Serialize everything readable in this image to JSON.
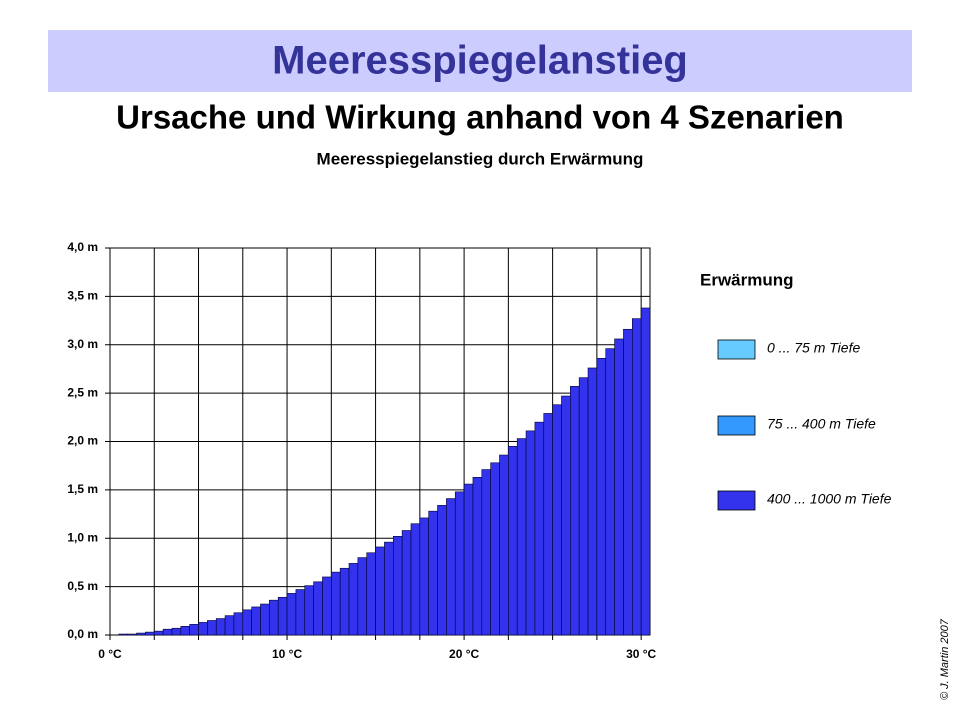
{
  "header": {
    "title": "Meeresspiegelanstieg",
    "subtitle": "Ursache und Wirkung anhand von 4 Szenarien"
  },
  "footer": {
    "copyright": "© J. Martin 2007"
  },
  "chart_data": {
    "type": "histogram",
    "stacked": true,
    "title": "Meeresspiegelanstieg durch Erwärmung",
    "legend_title": "Erwärmung",
    "legend": "right",
    "grid": true,
    "bins": [
      0,
      0.5,
      1,
      1.5,
      2,
      2.5,
      3,
      3.5,
      4,
      4.5,
      5,
      5.5,
      6,
      6.5,
      7,
      7.5,
      8,
      8.5,
      9,
      9.5,
      10,
      10.5,
      11,
      11.5,
      12,
      12.5,
      13,
      13.5,
      14,
      14.5,
      15,
      15.5,
      16,
      16.5,
      17,
      17.5,
      18,
      18.5,
      19,
      19.5,
      20,
      20.5,
      21,
      21.5,
      22,
      22.5,
      23,
      23.5,
      24,
      24.5,
      25,
      25.5,
      26,
      26.5,
      27,
      27.5,
      28,
      28.5,
      29,
      29.5,
      30,
      30.5
    ],
    "series": [
      {
        "name": "0 ... 75 m Tiefe",
        "color": "#66ccff",
        "values": [
          0,
          0,
          0,
          0,
          0,
          0,
          0,
          0,
          0,
          0,
          0,
          0,
          0,
          0,
          0,
          0,
          0,
          0,
          0,
          0,
          0,
          0,
          0,
          0,
          0,
          0,
          0,
          0,
          0,
          0,
          0,
          0,
          0,
          0,
          0,
          0,
          0,
          0,
          0,
          0,
          0,
          0,
          0,
          0,
          0,
          0,
          0,
          0,
          0,
          0,
          0,
          0,
          0,
          0,
          0,
          0,
          0,
          0,
          0,
          0,
          0
        ]
      },
      {
        "name": "75 ... 400 m Tiefe",
        "color": "#3399ff",
        "values": [
          0,
          0,
          0,
          0,
          0,
          0,
          0,
          0,
          0,
          0,
          0,
          0,
          0,
          0,
          0,
          0,
          0,
          0,
          0,
          0,
          0,
          0,
          0,
          0,
          0,
          0,
          0,
          0,
          0,
          0,
          0,
          0,
          0,
          0,
          0,
          0,
          0,
          0,
          0,
          0,
          0,
          0,
          0,
          0,
          0,
          0,
          0,
          0,
          0,
          0,
          0,
          0,
          0,
          0,
          0,
          0,
          0,
          0,
          0,
          0,
          0
        ]
      },
      {
        "name": "400 ... 1000 m Tiefe",
        "color": "#3333ee",
        "values": [
          0,
          0.01,
          0.01,
          0.02,
          0.03,
          0.04,
          0.06,
          0.07,
          0.09,
          0.11,
          0.13,
          0.15,
          0.17,
          0.2,
          0.23,
          0.26,
          0.29,
          0.32,
          0.36,
          0.39,
          0.43,
          0.47,
          0.51,
          0.55,
          0.6,
          0.65,
          0.69,
          0.74,
          0.8,
          0.85,
          0.91,
          0.96,
          1.02,
          1.08,
          1.15,
          1.21,
          1.28,
          1.34,
          1.41,
          1.48,
          1.56,
          1.63,
          1.71,
          1.78,
          1.86,
          1.95,
          2.03,
          2.11,
          2.2,
          2.29,
          2.38,
          2.47,
          2.57,
          2.66,
          2.76,
          2.86,
          2.96,
          3.06,
          3.16,
          3.27,
          3.38
        ]
      }
    ],
    "xlim": [
      0,
      30.5
    ],
    "xticks": [
      {
        "value": 0,
        "label": "0 °C"
      },
      {
        "value": 2.5,
        "label": null
      },
      {
        "value": 5,
        "label": null
      },
      {
        "value": 7.5,
        "label": null
      },
      {
        "value": 10,
        "label": "10 °C"
      },
      {
        "value": 12.5,
        "label": null
      },
      {
        "value": 15,
        "label": null
      },
      {
        "value": 17.5,
        "label": null
      },
      {
        "value": 20,
        "label": "20 °C"
      },
      {
        "value": 22.5,
        "label": null
      },
      {
        "value": 25,
        "label": null
      },
      {
        "value": 27.5,
        "label": null
      },
      {
        "value": 30,
        "label": "30 °C"
      }
    ],
    "ylim": [
      0,
      4
    ],
    "yticks": [
      {
        "value": 0,
        "label": "0,0 m"
      },
      {
        "value": 0.5,
        "label": "0,5 m"
      },
      {
        "value": 1,
        "label": "1,0 m"
      },
      {
        "value": 1.5,
        "label": "1,5 m"
      },
      {
        "value": 2,
        "label": "2,0 m"
      },
      {
        "value": 2.5,
        "label": "2,5 m"
      },
      {
        "value": 3,
        "label": "3,0 m"
      },
      {
        "value": 3.5,
        "label": "3,5 m"
      },
      {
        "value": 4,
        "label": "4,0 m"
      }
    ]
  }
}
